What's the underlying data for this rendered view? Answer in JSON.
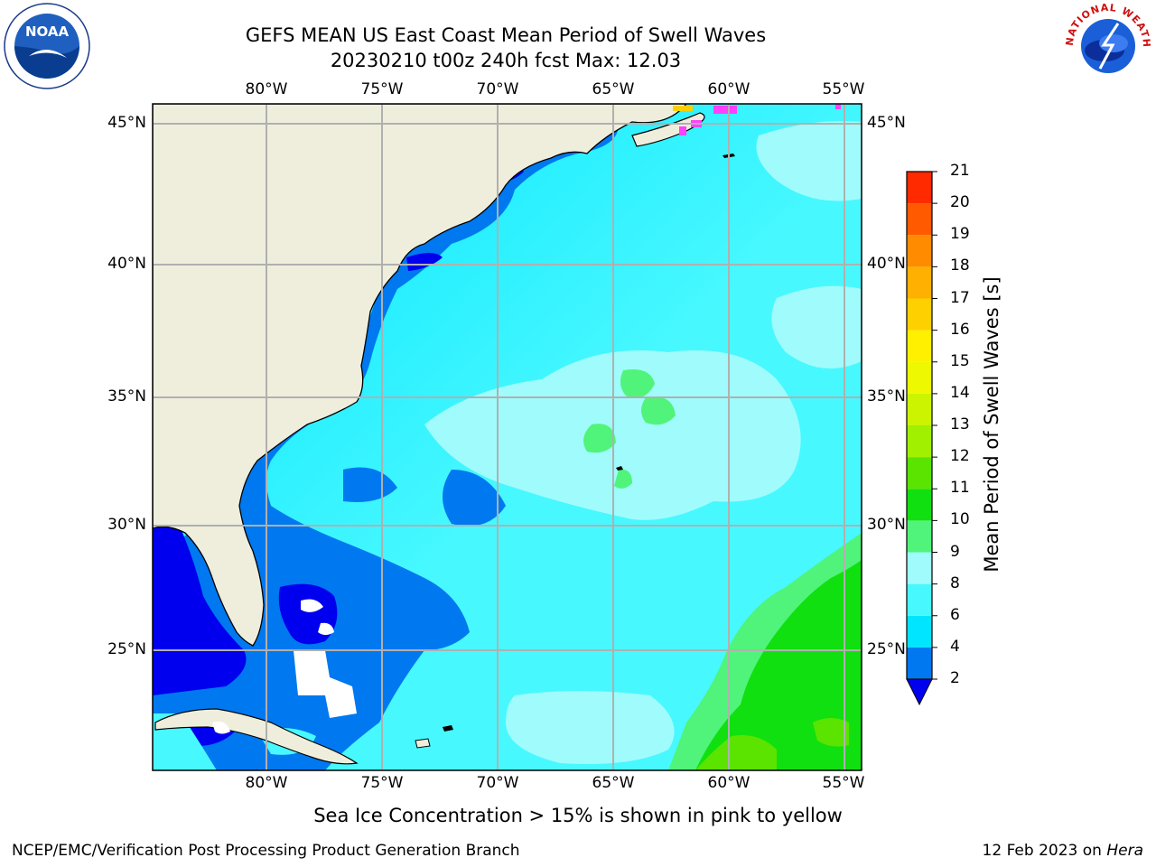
{
  "header": {
    "title_line1": "GEFS MEAN US East Coast Mean Period of Swell Waves",
    "title_line2": "20230210 t00z 240h fcst   Max: 12.03"
  },
  "map": {
    "lon_labels": [
      "80°W",
      "75°W",
      "70°W",
      "65°W",
      "60°W",
      "55°W"
    ],
    "lat_labels": [
      "45°N",
      "40°N",
      "35°N",
      "30°N",
      "25°N"
    ],
    "land_color": "#efeedc",
    "ocean_note": "Sea Ice Concentration > 15% is shown in pink to yellow"
  },
  "colorbar": {
    "label": "Mean Period of Swell Waves [s]",
    "ticks": [
      "2",
      "4",
      "6",
      "8",
      "9",
      "10",
      "11",
      "12",
      "13",
      "14",
      "15",
      "16",
      "17",
      "18",
      "19",
      "20",
      "21"
    ],
    "colors": [
      "#0000ee",
      "#0078f0",
      "#00e5ff",
      "#48f8ff",
      "#a0fcfc",
      "#50f47a",
      "#10e010",
      "#5ae400",
      "#a0f000",
      "#ccf400",
      "#eef800",
      "#fff000",
      "#ffd000",
      "#ffb000",
      "#ff8c00",
      "#ff5a00",
      "#ff2a00",
      "#ff0000"
    ]
  },
  "footer": {
    "left": "NCEP/EMC/Verification Post Processing Product Generation Branch",
    "date": "12 Feb 2023 on ",
    "machine": "Hera"
  },
  "logos": {
    "left": "NOAA",
    "right_text": "NATIONAL WEATHER SERVICE"
  }
}
